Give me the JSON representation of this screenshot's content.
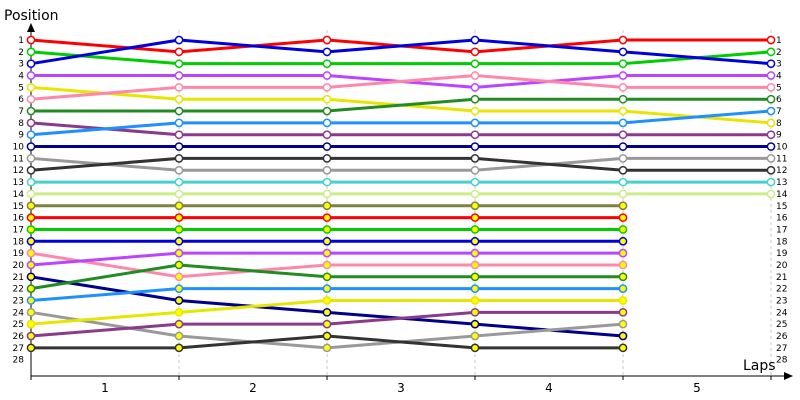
{
  "chart_data": {
    "type": "line",
    "title": "",
    "ylabel": "Position",
    "xlabel": "Laps",
    "y_ticks": [
      1,
      2,
      3,
      4,
      5,
      6,
      7,
      8,
      9,
      10,
      11,
      12,
      13,
      14,
      15,
      16,
      17,
      18,
      19,
      20,
      21,
      22,
      23,
      24,
      25,
      26,
      27,
      28
    ],
    "x_ticks": [
      "1",
      "2",
      "3",
      "4",
      "5"
    ],
    "x_points": [
      0,
      1,
      2,
      3,
      4,
      5
    ],
    "ylim": [
      1,
      28
    ],
    "y_inverted": true,
    "right_labels_for_finishers": true,
    "series": [
      {
        "color": "#ff0000",
        "positions": [
          1,
          2,
          1,
          2,
          1,
          1
        ]
      },
      {
        "color": "#00cc00",
        "positions": [
          2,
          3,
          3,
          3,
          3,
          2
        ]
      },
      {
        "color": "#0000dd",
        "positions": [
          3,
          1,
          2,
          1,
          2,
          3
        ]
      },
      {
        "color": "#bb44ff",
        "positions": [
          4,
          4,
          4,
          5,
          4,
          4
        ]
      },
      {
        "color": "#e6e600",
        "positions": [
          5,
          6,
          6,
          7,
          7,
          8
        ]
      },
      {
        "color": "#ff88aa",
        "positions": [
          6,
          5,
          5,
          4,
          5,
          5
        ]
      },
      {
        "color": "#228B22",
        "positions": [
          7,
          7,
          7,
          6,
          6,
          6
        ]
      },
      {
        "color": "#8B3A8B",
        "positions": [
          8,
          9,
          9,
          9,
          9,
          9
        ]
      },
      {
        "color": "#1e90ff",
        "positions": [
          9,
          8,
          8,
          8,
          8,
          7
        ]
      },
      {
        "color": "#00008B",
        "positions": [
          10,
          10,
          10,
          10,
          10,
          10
        ]
      },
      {
        "color": "#999999",
        "positions": [
          11,
          12,
          12,
          12,
          11,
          11
        ]
      },
      {
        "color": "#333333",
        "positions": [
          12,
          11,
          11,
          11,
          12,
          12
        ]
      },
      {
        "color": "#48d1cc",
        "positions": [
          13,
          13,
          13,
          13,
          13,
          13
        ]
      },
      {
        "color": "#ccee88",
        "positions": [
          14,
          14,
          14,
          14,
          14,
          14
        ]
      },
      {
        "color": "#808040",
        "positions": [
          15,
          15,
          15,
          15,
          15
        ]
      },
      {
        "color": "#ff0000",
        "positions": [
          16,
          16,
          16,
          16,
          16
        ]
      },
      {
        "color": "#00cc00",
        "positions": [
          17,
          17,
          17,
          17,
          17
        ]
      },
      {
        "color": "#0000dd",
        "positions": [
          18,
          18,
          18,
          18,
          18
        ]
      },
      {
        "color": "#ff88aa",
        "positions": [
          19,
          21,
          20,
          20,
          20
        ]
      },
      {
        "color": "#bb44ff",
        "positions": [
          20,
          19,
          19,
          19,
          19
        ]
      },
      {
        "color": "#00008B",
        "positions": [
          21,
          23,
          24,
          25,
          26
        ]
      },
      {
        "color": "#228B22",
        "positions": [
          22,
          20,
          21,
          21,
          21
        ]
      },
      {
        "color": "#1e90ff",
        "positions": [
          23,
          22,
          22,
          22,
          22
        ]
      },
      {
        "color": "#999999",
        "positions": [
          24,
          26,
          27,
          26,
          25
        ]
      },
      {
        "color": "#e6e600",
        "positions": [
          25,
          24,
          23,
          23,
          23
        ]
      },
      {
        "color": "#8B3A8B",
        "positions": [
          26,
          25,
          25,
          24,
          24
        ]
      },
      {
        "color": "#333333",
        "positions": [
          27,
          27,
          26,
          27,
          27
        ]
      }
    ]
  }
}
